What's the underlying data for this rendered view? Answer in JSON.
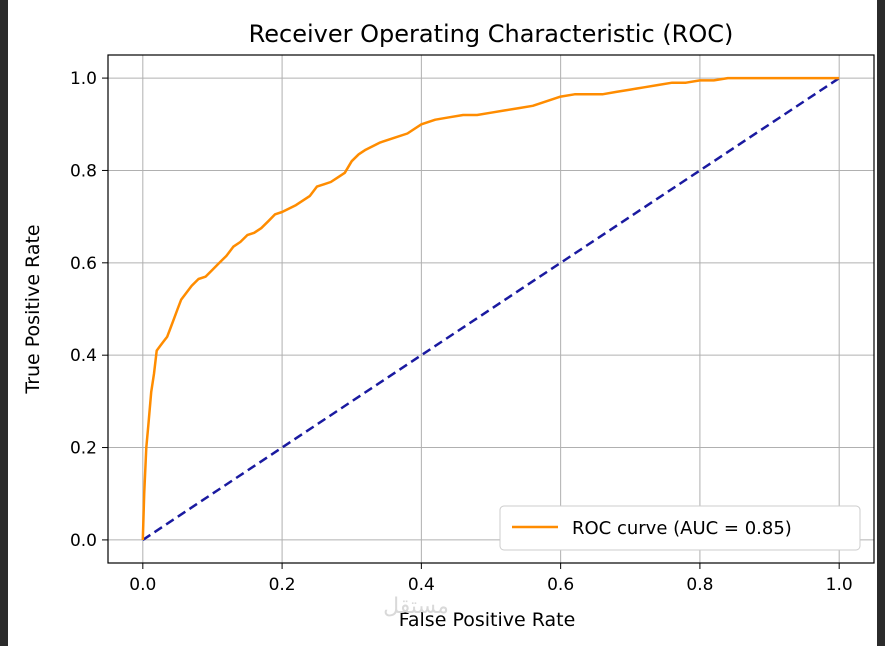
{
  "chart_data": {
    "type": "line",
    "title": "Receiver Operating Characteristic (ROC)",
    "xlabel": "False Positive Rate",
    "ylabel": "True Positive Rate",
    "xlim": [
      -0.05,
      1.05
    ],
    "ylim": [
      -0.05,
      1.05
    ],
    "xticks": [
      "0.0",
      "0.2",
      "0.4",
      "0.6",
      "0.8",
      "1.0"
    ],
    "yticks": [
      "0.0",
      "0.2",
      "0.4",
      "0.6",
      "0.8",
      "1.0"
    ],
    "grid": true,
    "legend_position": "bottom-right",
    "series": [
      {
        "name": "ROC curve (AUC = 0.85)",
        "color": "#ff8c00",
        "style": "solid",
        "x": [
          0.0,
          0.002,
          0.005,
          0.008,
          0.012,
          0.016,
          0.02,
          0.025,
          0.03,
          0.035,
          0.04,
          0.045,
          0.05,
          0.055,
          0.06,
          0.065,
          0.07,
          0.08,
          0.09,
          0.1,
          0.11,
          0.12,
          0.13,
          0.14,
          0.15,
          0.16,
          0.17,
          0.18,
          0.19,
          0.2,
          0.22,
          0.24,
          0.25,
          0.26,
          0.27,
          0.28,
          0.29,
          0.3,
          0.31,
          0.32,
          0.34,
          0.36,
          0.38,
          0.4,
          0.42,
          0.44,
          0.46,
          0.48,
          0.5,
          0.52,
          0.54,
          0.56,
          0.58,
          0.6,
          0.62,
          0.64,
          0.66,
          0.68,
          0.7,
          0.72,
          0.74,
          0.76,
          0.78,
          0.8,
          0.82,
          0.84,
          0.86,
          0.88,
          0.9,
          0.92,
          0.94,
          0.96,
          0.98,
          1.0
        ],
        "y": [
          0.0,
          0.1,
          0.2,
          0.25,
          0.32,
          0.36,
          0.41,
          0.42,
          0.43,
          0.44,
          0.46,
          0.48,
          0.5,
          0.52,
          0.53,
          0.54,
          0.55,
          0.565,
          0.57,
          0.585,
          0.6,
          0.615,
          0.635,
          0.645,
          0.66,
          0.665,
          0.675,
          0.69,
          0.705,
          0.71,
          0.725,
          0.745,
          0.765,
          0.77,
          0.775,
          0.785,
          0.795,
          0.82,
          0.835,
          0.845,
          0.86,
          0.87,
          0.88,
          0.9,
          0.91,
          0.915,
          0.92,
          0.92,
          0.925,
          0.93,
          0.935,
          0.94,
          0.95,
          0.96,
          0.965,
          0.965,
          0.965,
          0.97,
          0.975,
          0.98,
          0.985,
          0.99,
          0.99,
          0.995,
          0.995,
          1.0,
          1.0,
          1.0,
          1.0,
          1.0,
          1.0,
          1.0,
          1.0,
          1.0
        ]
      },
      {
        "name": "",
        "color": "#1a1aa0",
        "style": "dashed",
        "x": [
          0.0,
          1.0
        ],
        "y": [
          0.0,
          1.0
        ]
      }
    ]
  },
  "watermark": "مستقل"
}
